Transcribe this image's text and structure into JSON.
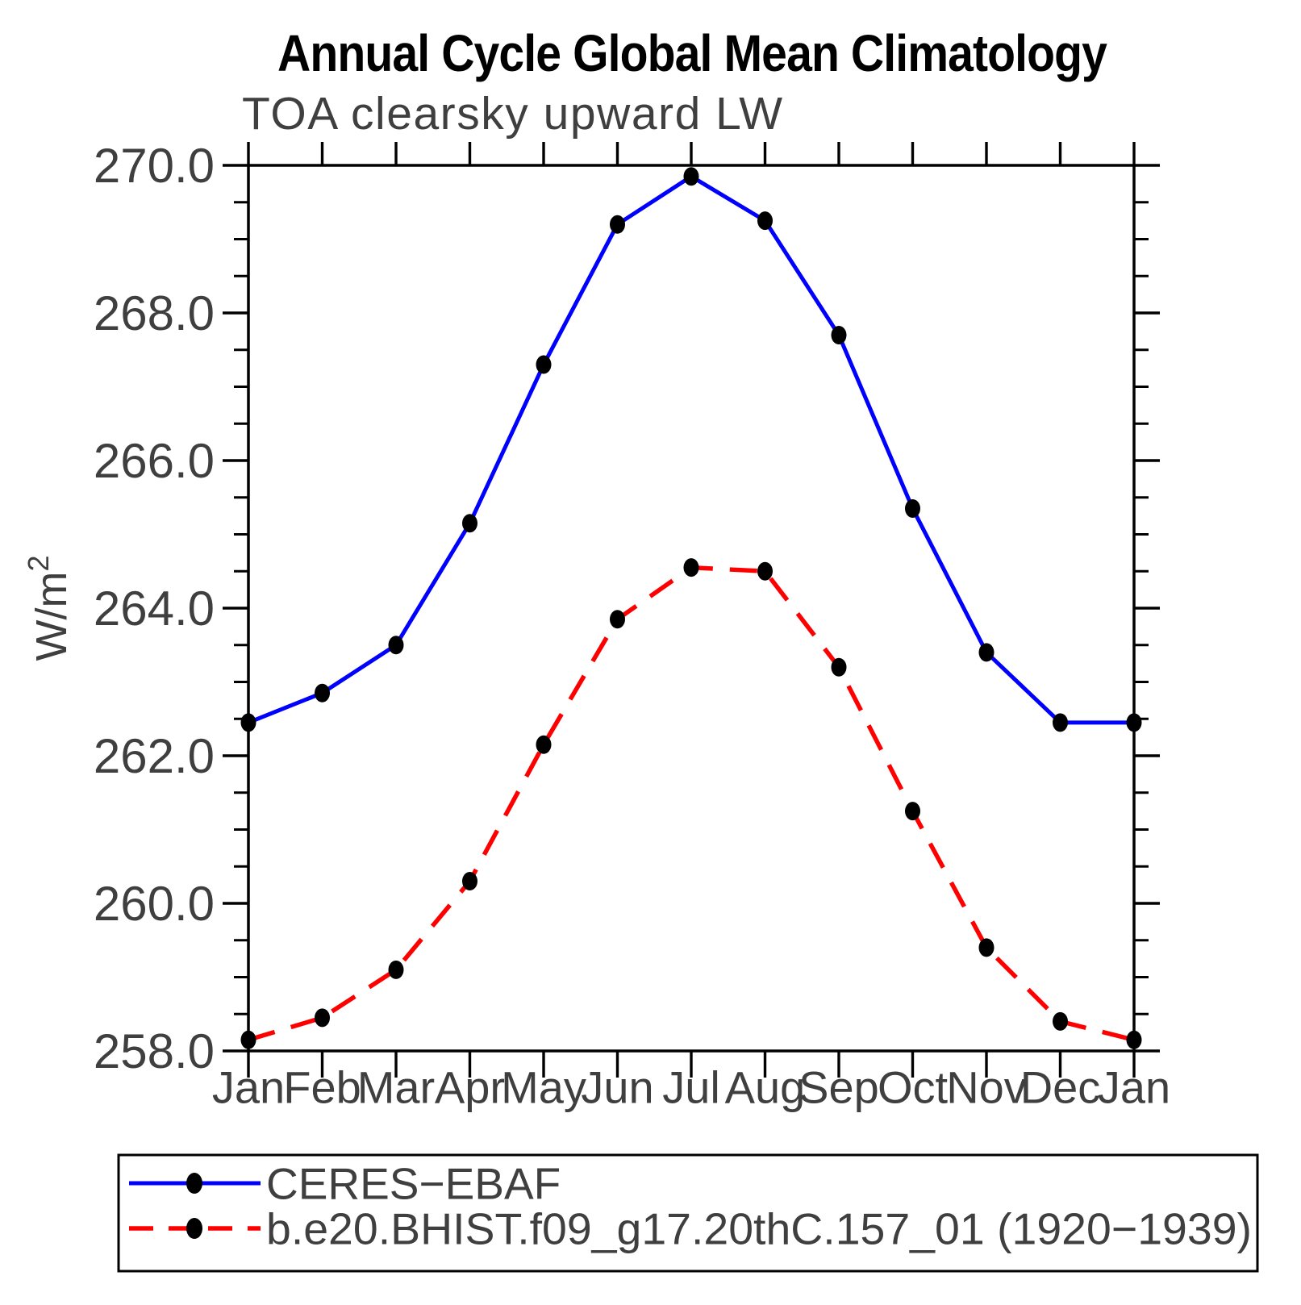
{
  "title": "Annual Cycle Global Mean Climatology",
  "subtitle": "TOA clearsky upward LW",
  "y_axis": {
    "label_base": "W/m",
    "label_exponent": "2"
  },
  "colors": {
    "ceres_line": "#0000ff",
    "model_line": "#ff0000",
    "marker": "#000000",
    "axis": "#000000",
    "thin_text": "#3f3f3f",
    "title_text": "#000000",
    "background": "#ffffff"
  },
  "chart_data": {
    "type": "line",
    "categories": [
      "Jan",
      "Feb",
      "Mar",
      "Apr",
      "May",
      "Jun",
      "Jul",
      "Aug",
      "Sep",
      "Oct",
      "Nov",
      "Dec",
      "Jan"
    ],
    "series": [
      {
        "name": "CERES−EBAF",
        "color": "#0000ff",
        "line_style": "solid",
        "marker": "filled-black-dot",
        "values": [
          262.45,
          262.85,
          263.5,
          265.15,
          267.3,
          269.2,
          269.85,
          269.25,
          267.7,
          265.35,
          263.4,
          262.45,
          262.45
        ]
      },
      {
        "name": "b.e20.BHIST.f09_g17.20thC.157_01 (1920−1939)",
        "color": "#ff0000",
        "line_style": "dashed",
        "marker": "filled-black-dot",
        "values": [
          258.15,
          258.45,
          259.1,
          260.3,
          262.15,
          263.85,
          264.55,
          264.5,
          263.2,
          261.25,
          259.4,
          258.4,
          258.15
        ]
      }
    ],
    "ylim": [
      258.0,
      270.0
    ],
    "ytick_major_step": 2.0,
    "ytick_minor_step": 0.5,
    "ytick_label_format": "one-decimal",
    "grid": false,
    "legend_position": "bottom-left-box"
  },
  "legend": {
    "items": [
      {
        "label": "CERES−EBAF"
      },
      {
        "label": "b.e20.BHIST.f09_g17.20thC.157_01 (1920−1939)"
      }
    ]
  }
}
